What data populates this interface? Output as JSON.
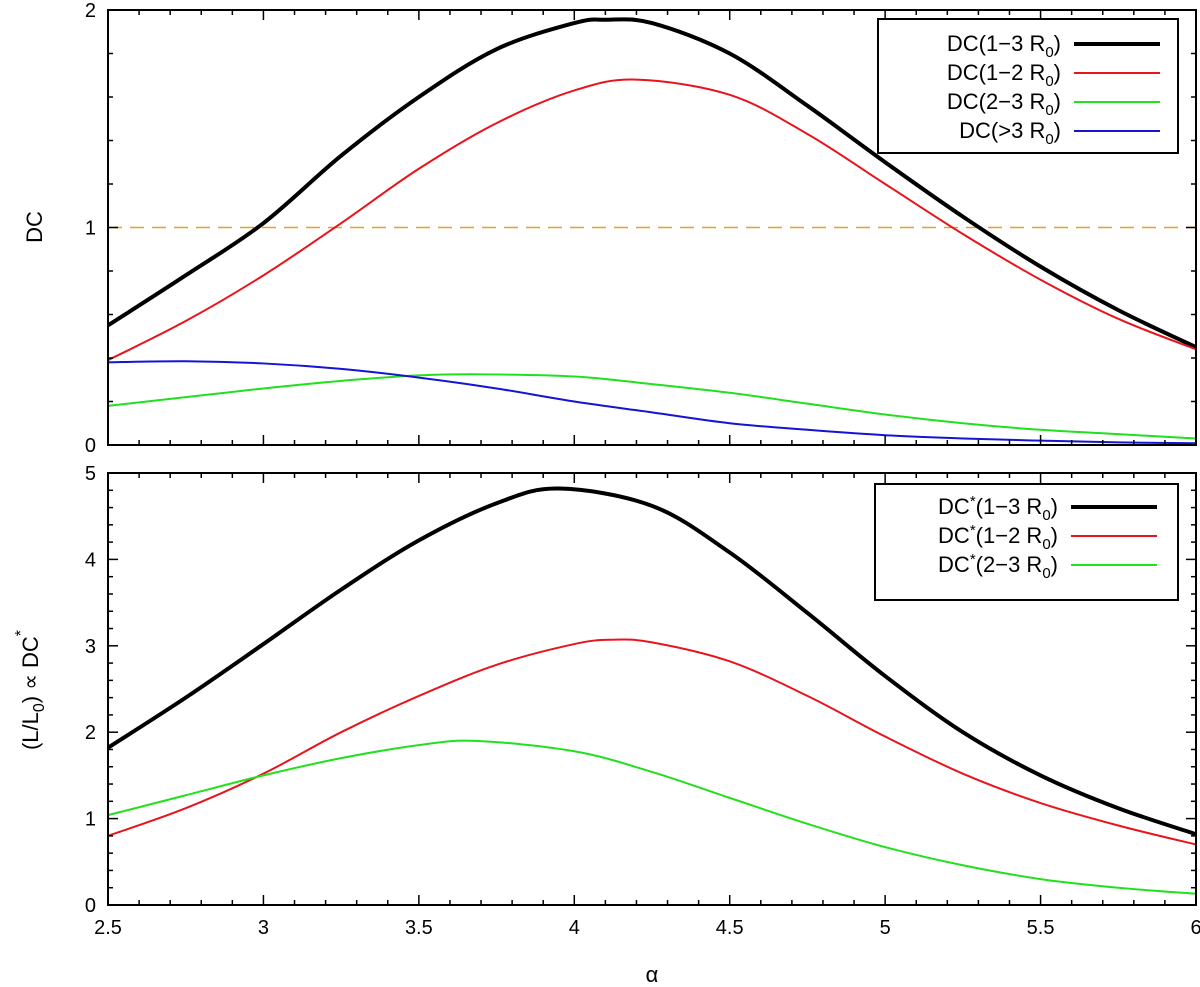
{
  "chart_data": [
    {
      "type": "line",
      "ylabel": "DC",
      "xlim": [
        2.5,
        6
      ],
      "ylim": [
        0,
        2
      ],
      "yticks": [
        "0",
        "1",
        "2"
      ],
      "xticks_shown": false,
      "reference_line": {
        "y": 1,
        "color": "#e8a020",
        "style": "dashed"
      },
      "legend_position": "top-right",
      "series": [
        {
          "legend_main": "DC(1−3 R",
          "legend_sub": "0",
          "legend_tail": ")",
          "color": "#000000",
          "width": 4,
          "x": [
            2.5,
            2.75,
            3.0,
            3.25,
            3.5,
            3.75,
            4.0,
            4.1,
            4.25,
            4.5,
            4.75,
            5.0,
            5.25,
            5.5,
            5.75,
            6.0
          ],
          "y": [
            0.55,
            0.78,
            1.02,
            1.33,
            1.6,
            1.82,
            1.94,
            1.955,
            1.94,
            1.8,
            1.56,
            1.3,
            1.05,
            0.82,
            0.62,
            0.45
          ]
        },
        {
          "legend_main": "DC(1−2 R",
          "legend_sub": "0",
          "legend_tail": ")",
          "color": "#e8141c",
          "width": 2,
          "x": [
            2.5,
            2.75,
            3.0,
            3.25,
            3.5,
            3.75,
            4.0,
            4.2,
            4.5,
            4.75,
            5.0,
            5.25,
            5.5,
            5.75,
            6.0
          ],
          "y": [
            0.39,
            0.57,
            0.78,
            1.02,
            1.27,
            1.48,
            1.63,
            1.68,
            1.61,
            1.43,
            1.2,
            0.97,
            0.76,
            0.58,
            0.44
          ]
        },
        {
          "legend_main": "DC(2−3 R",
          "legend_sub": "0",
          "legend_tail": ")",
          "color": "#22e01e",
          "width": 2,
          "x": [
            2.5,
            2.75,
            3.0,
            3.25,
            3.5,
            3.7,
            4.0,
            4.25,
            4.5,
            4.75,
            5.0,
            5.25,
            5.5,
            5.75,
            6.0
          ],
          "y": [
            0.18,
            0.22,
            0.26,
            0.295,
            0.32,
            0.325,
            0.315,
            0.28,
            0.24,
            0.19,
            0.14,
            0.1,
            0.07,
            0.05,
            0.03
          ]
        },
        {
          "legend_main": "DC(>3 R",
          "legend_sub": "0",
          "legend_tail": ")",
          "color": "#1414d2",
          "width": 2,
          "x": [
            2.5,
            2.75,
            3.0,
            3.25,
            3.5,
            3.75,
            4.0,
            4.25,
            4.5,
            4.75,
            5.0,
            5.25,
            5.5,
            5.75,
            6.0
          ],
          "y": [
            0.38,
            0.385,
            0.375,
            0.35,
            0.31,
            0.26,
            0.2,
            0.15,
            0.1,
            0.07,
            0.045,
            0.03,
            0.02,
            0.012,
            0.008
          ]
        }
      ]
    },
    {
      "type": "line",
      "ylabel_parts": [
        "(L/L",
        "0",
        ") ∝ DC",
        "*"
      ],
      "xlabel": "α",
      "xlim": [
        2.5,
        6
      ],
      "ylim": [
        0,
        5
      ],
      "xticks": [
        "2.5",
        "3",
        "3.5",
        "4",
        "4.5",
        "5",
        "5.5",
        "6"
      ],
      "yticks": [
        "0",
        "1",
        "2",
        "3",
        "4",
        "5"
      ],
      "legend_position": "top-right",
      "series": [
        {
          "legend_main": "DC",
          "legend_sup": "*",
          "legend_rest": "(1−3 R",
          "legend_sub": "0",
          "legend_tail": ")",
          "color": "#000000",
          "width": 4,
          "x": [
            2.5,
            2.75,
            3.0,
            3.25,
            3.5,
            3.75,
            3.95,
            4.25,
            4.5,
            4.75,
            5.0,
            5.25,
            5.5,
            5.75,
            6.0
          ],
          "y": [
            1.82,
            2.4,
            3.02,
            3.65,
            4.22,
            4.65,
            4.82,
            4.62,
            4.08,
            3.38,
            2.65,
            2.0,
            1.5,
            1.12,
            0.82
          ]
        },
        {
          "legend_main": "DC",
          "legend_sup": "*",
          "legend_rest": "(1−2 R",
          "legend_sub": "0",
          "legend_tail": ")",
          "color": "#e8141c",
          "width": 2,
          "x": [
            2.5,
            2.75,
            3.0,
            3.25,
            3.5,
            3.75,
            4.0,
            4.12,
            4.25,
            4.5,
            4.75,
            5.0,
            5.25,
            5.5,
            5.75,
            6.0
          ],
          "y": [
            0.8,
            1.12,
            1.52,
            2.0,
            2.42,
            2.78,
            3.02,
            3.07,
            3.04,
            2.82,
            2.42,
            1.95,
            1.52,
            1.18,
            0.92,
            0.7
          ]
        },
        {
          "legend_main": "DC",
          "legend_sup": "*",
          "legend_rest": "(2−3 R",
          "legend_sub": "0",
          "legend_tail": ")",
          "color": "#22e01e",
          "width": 2,
          "x": [
            2.5,
            2.75,
            3.0,
            3.25,
            3.5,
            3.68,
            4.0,
            4.25,
            4.5,
            4.75,
            5.0,
            5.25,
            5.5,
            5.75,
            6.0
          ],
          "y": [
            1.04,
            1.27,
            1.5,
            1.7,
            1.85,
            1.9,
            1.78,
            1.54,
            1.24,
            0.94,
            0.67,
            0.46,
            0.3,
            0.2,
            0.13
          ]
        }
      ]
    }
  ]
}
